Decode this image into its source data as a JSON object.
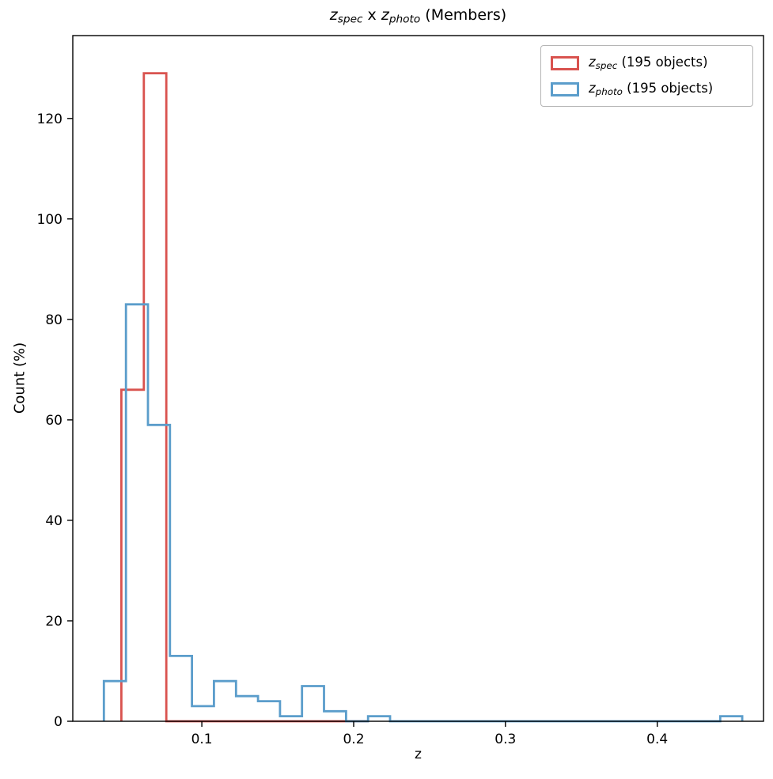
{
  "chart_data": {
    "type": "histogram",
    "histtype": "step",
    "title_parts": {
      "var1": "z",
      "sub1": "spec",
      "mid": " x ",
      "var2": "z",
      "sub2": "photo",
      "suffix": " (Members)"
    },
    "title_plain": "z_spec x z_photo (Members)",
    "xlabel": "z",
    "ylabel": "Count (%)",
    "xlim": [
      0.015,
      0.47
    ],
    "ylim": [
      0,
      136.5
    ],
    "xticks": [
      "0.1",
      "0.2",
      "0.3",
      "0.4"
    ],
    "xtick_values": [
      0.1,
      0.2,
      0.3,
      0.4
    ],
    "yticks": [
      "0",
      "20",
      "40",
      "60",
      "80",
      "100",
      "120"
    ],
    "ytick_values": [
      0,
      20,
      40,
      60,
      80,
      100,
      120
    ],
    "grid": false,
    "legend_position": "upper right",
    "series": [
      {
        "id": "zspec",
        "legend_parts": {
          "var": "z",
          "sub": "spec",
          "rest": " (195 objects)"
        },
        "legend_plain": "z_spec (195 objects)",
        "color": "#d9534f",
        "bin_start": 0.047,
        "bin_width": 0.0148,
        "values": [
          66,
          129,
          0,
          0,
          0,
          0,
          0,
          0,
          0,
          0,
          0
        ]
      },
      {
        "id": "zphoto",
        "legend_parts": {
          "var": "z",
          "sub": "photo",
          "rest": " (195 objects)"
        },
        "legend_plain": "z_photo (195 objects)",
        "color": "#5b9dcb",
        "bin_start": 0.0355,
        "bin_width": 0.0145,
        "values": [
          8,
          83,
          59,
          13,
          3,
          8,
          5,
          4,
          1,
          7,
          2,
          0,
          1,
          0,
          0,
          0,
          0,
          0,
          0,
          0,
          0,
          0,
          0,
          0,
          0,
          0,
          0,
          0,
          1
        ]
      }
    ]
  }
}
